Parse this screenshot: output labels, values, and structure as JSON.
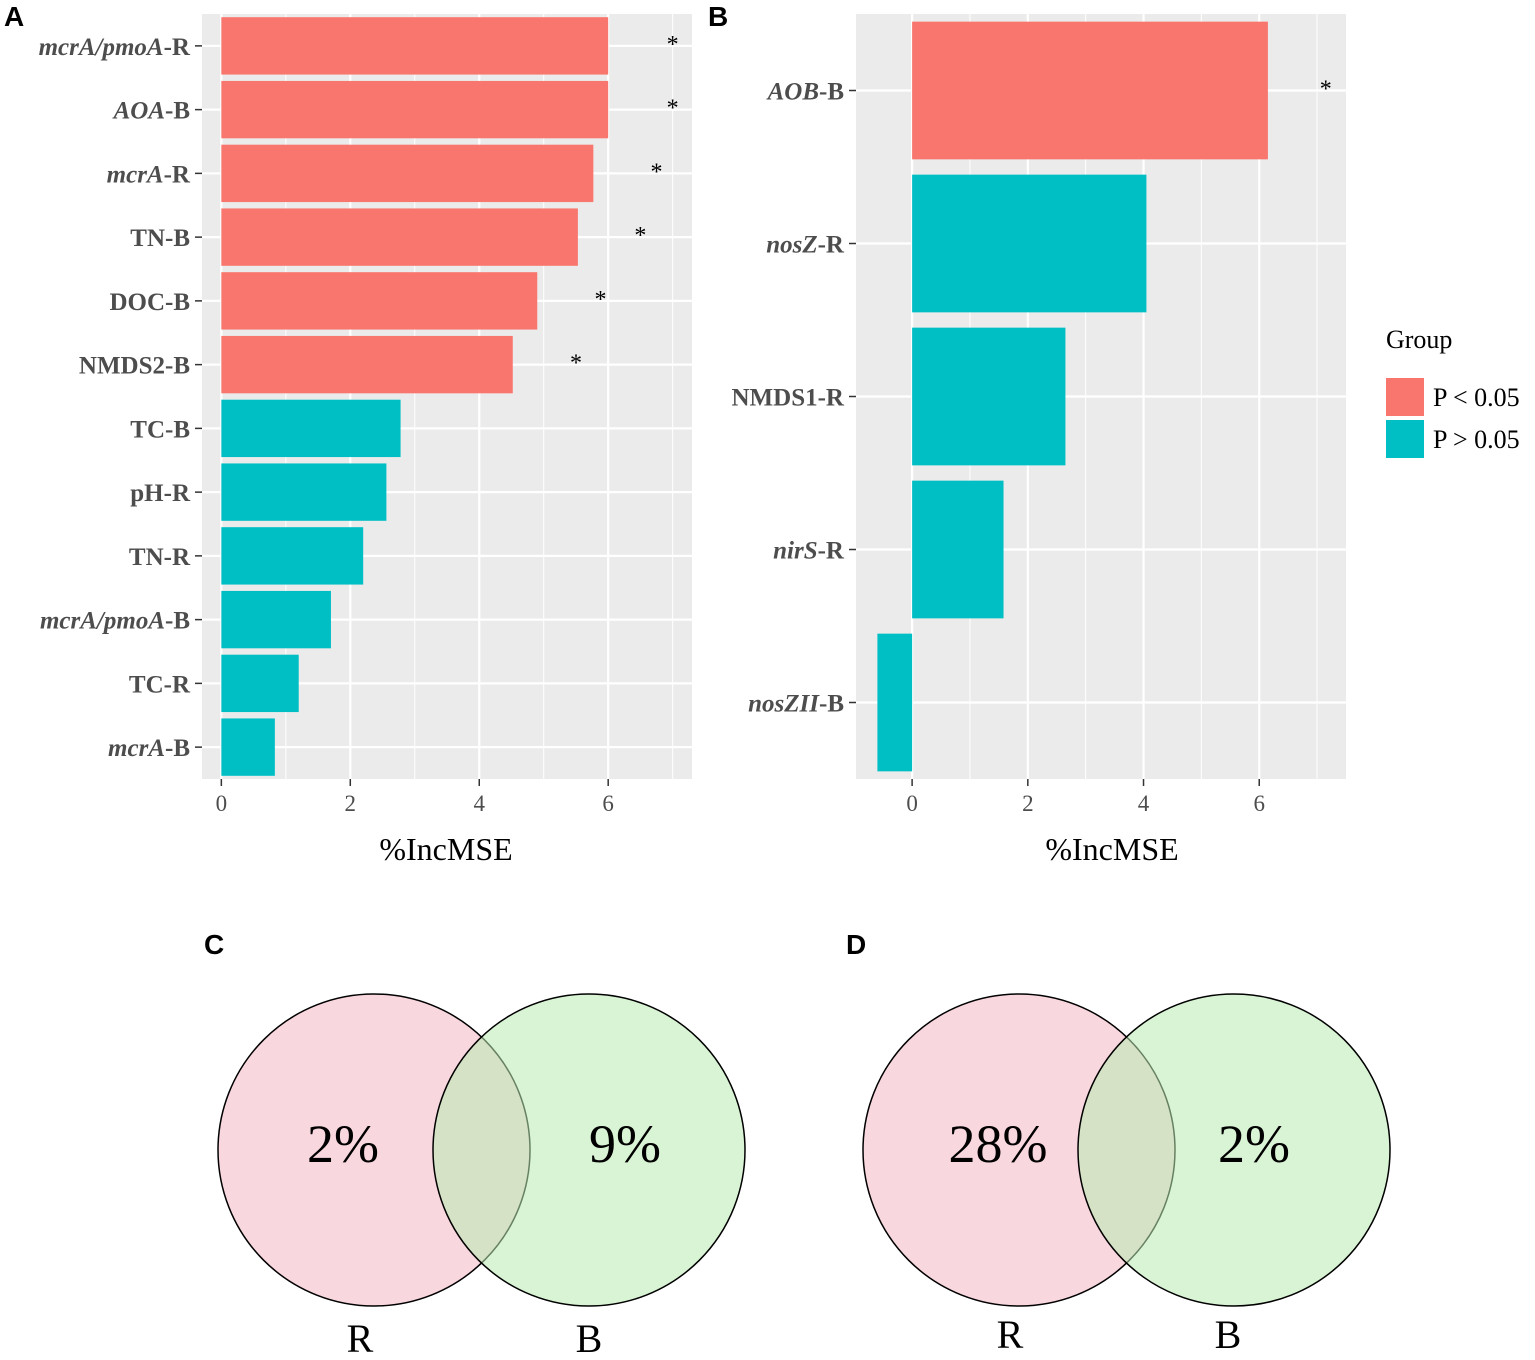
{
  "colors": {
    "significant": "#F8766D",
    "nonsignificant": "#00BFC4",
    "panel_bg": "#EBEBEB",
    "grid": "#FFFFFF",
    "venn_R": "#F4B6C2",
    "venn_B": "#B9EBB0"
  },
  "legend": {
    "title": "Group",
    "items": [
      {
        "label": "P < 0.05",
        "color_key": "significant"
      },
      {
        "label": "P > 0.05",
        "color_key": "nonsignificant"
      }
    ]
  },
  "chart_data": [
    {
      "panel": "A",
      "type": "bar",
      "orientation": "horizontal",
      "xlabel": "%IncMSE",
      "xlim": [
        -0.3,
        7.3
      ],
      "xticks": [
        0,
        2,
        4,
        6
      ],
      "categories": [
        {
          "label": "mcrA/pmoA-R",
          "italic": "mcrA/pmoA",
          "suffix": "-R"
        },
        {
          "label": "AOA-B",
          "italic": "AOA",
          "suffix": "-B"
        },
        {
          "label": "mcrA-R",
          "italic": "mcrA",
          "suffix": "-R"
        },
        {
          "label": "TN-B",
          "italic": "",
          "suffix": "TN-B"
        },
        {
          "label": "DOC-B",
          "italic": "",
          "suffix": "DOC-B"
        },
        {
          "label": "NMDS2-B",
          "italic": "",
          "suffix": "NMDS2-B"
        },
        {
          "label": "TC-B",
          "italic": "",
          "suffix": "TC-B"
        },
        {
          "label": "pH-R",
          "italic": "",
          "suffix": "pH-R"
        },
        {
          "label": "TN-R",
          "italic": "",
          "suffix": "TN-R"
        },
        {
          "label": "mcrA/pmoA-B",
          "italic": "mcrA/pmoA",
          "suffix": "-B"
        },
        {
          "label": "TC-R",
          "italic": "",
          "suffix": "TC-R"
        },
        {
          "label": "mcrA-B",
          "italic": "mcrA",
          "suffix": "-B"
        }
      ],
      "values": [
        6.0,
        6.0,
        5.77,
        5.53,
        4.9,
        4.52,
        2.78,
        2.56,
        2.2,
        1.7,
        1.2,
        0.83
      ],
      "significant": [
        true,
        true,
        true,
        true,
        true,
        true,
        false,
        false,
        false,
        false,
        false,
        false
      ],
      "star_at": [
        7.0,
        7.0,
        6.75,
        6.5,
        5.88,
        5.5,
        null,
        null,
        null,
        null,
        null,
        null
      ],
      "star_text": "*"
    },
    {
      "panel": "B",
      "type": "bar",
      "orientation": "horizontal",
      "xlabel": "%IncMSE",
      "xlim": [
        -0.97,
        7.5
      ],
      "xticks": [
        0,
        2,
        4,
        6
      ],
      "categories": [
        {
          "label": "AOB-B",
          "italic": "AOB",
          "suffix": "-B"
        },
        {
          "label": "nosZ-R",
          "italic": "nosZ",
          "suffix": "-R"
        },
        {
          "label": "NMDS1-R",
          "italic": "",
          "suffix": "NMDS1-R"
        },
        {
          "label": "nirS-R",
          "italic": "nirS",
          "suffix": "-R"
        },
        {
          "label": "nosZII-B",
          "italic": "nosZII",
          "suffix": "-B",
          "dark": true
        }
      ],
      "values": [
        6.15,
        4.05,
        2.65,
        1.58,
        -0.6
      ],
      "significant": [
        true,
        false,
        false,
        false,
        false
      ],
      "star_at": [
        7.15,
        null,
        null,
        null,
        null
      ],
      "star_text": "*"
    }
  ],
  "venn": [
    {
      "panel": "C",
      "left_label": "R",
      "right_label": "B",
      "left_value": "2%",
      "right_value": "9%"
    },
    {
      "panel": "D",
      "left_label": "R",
      "right_label": "B",
      "left_value": "28%",
      "right_value": "2%"
    }
  ]
}
